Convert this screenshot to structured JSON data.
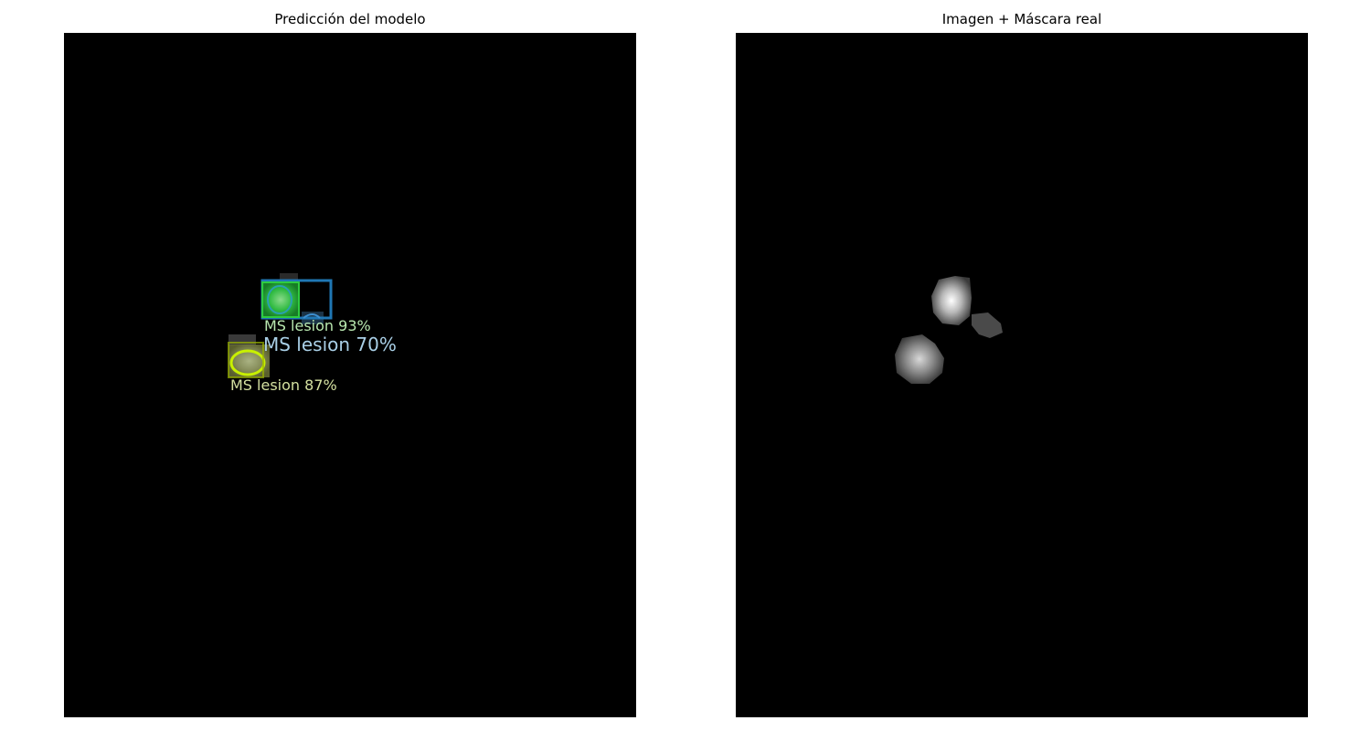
{
  "panels": {
    "left": {
      "title": "Predicción del modelo"
    },
    "right": {
      "title": "Imagen + Máscara real"
    }
  },
  "detections": [
    {
      "label": "MS lesion 93%",
      "color": "#2ecc40"
    },
    {
      "label": "MS lesion 70%",
      "color": "#1f77b4"
    },
    {
      "label": "MS lesion 87%",
      "color": "#b8e000"
    }
  ],
  "colors": {
    "background": "#000000",
    "page": "#ffffff"
  }
}
